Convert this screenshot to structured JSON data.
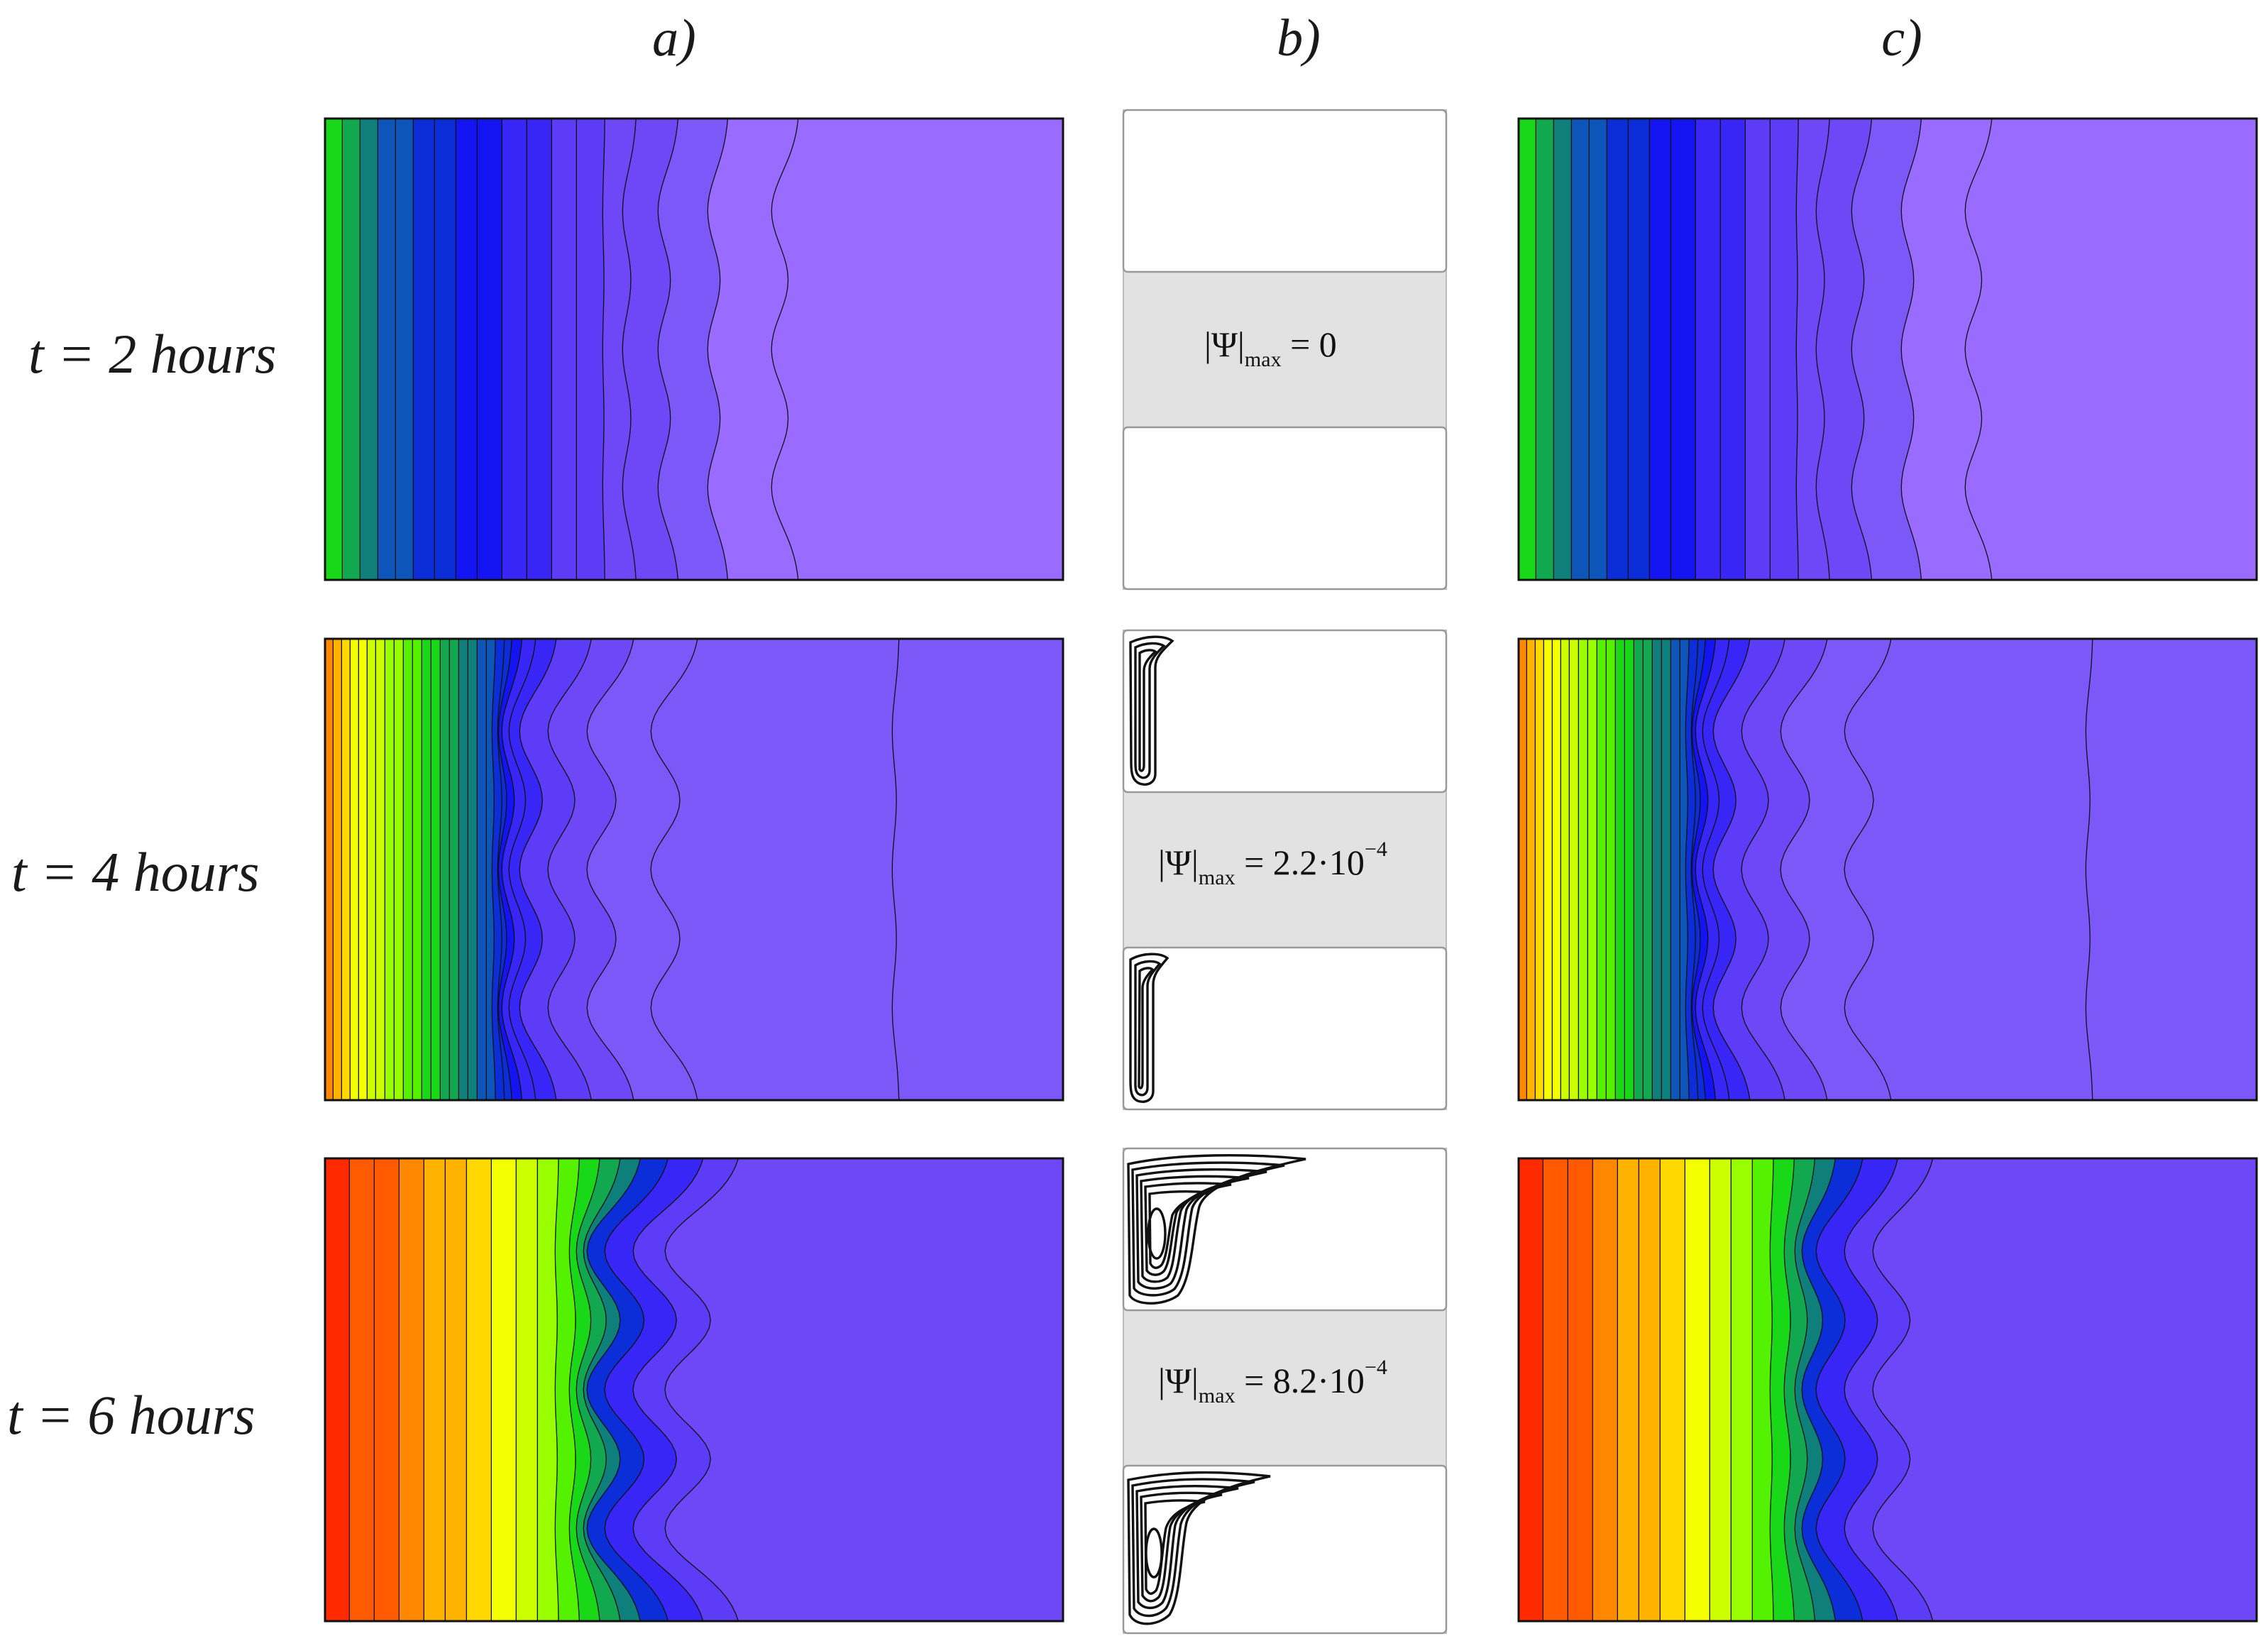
{
  "columns": [
    {
      "id": "a",
      "label": "a)"
    },
    {
      "id": "b",
      "label": "b)"
    },
    {
      "id": "c",
      "label": "c)"
    }
  ],
  "rows": [
    {
      "label": "t = 2 hours",
      "psi_prefix": "|Ψ|",
      "psi_sub": "max",
      "psi_value": " = 0",
      "psi_exp": ""
    },
    {
      "label": "t = 4 hours",
      "psi_prefix": "|Ψ|",
      "psi_sub": "max",
      "psi_value": " = 2.2·10",
      "psi_exp": "−4"
    },
    {
      "label": "t = 6 hours",
      "psi_prefix": "|Ψ|",
      "psi_sub": "max",
      "psi_value": " = 8.2·10",
      "psi_exp": "−4"
    }
  ],
  "colors": {
    "palette": [
      "#ff2a00",
      "#ff5a00",
      "#ff8800",
      "#ffb300",
      "#ffd800",
      "#f4ff00",
      "#ccff00",
      "#99ff00",
      "#55f200",
      "#18d818",
      "#12a850",
      "#0f7f7c",
      "#0d55b8",
      "#0c2ed8",
      "#1414f2",
      "#3826f7",
      "#5c3cf7",
      "#6e48f7",
      "#7d58f9",
      "#9a6bff"
    ],
    "panel_a_t2": [
      9,
      10,
      11,
      12,
      12,
      13,
      13,
      14,
      14,
      15,
      15,
      16,
      16,
      17,
      17,
      18,
      19
    ],
    "panel_a_t4": [
      2,
      3,
      4,
      5,
      5,
      6,
      6,
      7,
      7,
      8,
      8,
      9,
      9,
      10,
      10,
      11,
      11,
      12,
      12,
      13,
      13,
      14,
      15,
      15,
      16,
      17,
      18
    ],
    "panel_a_t6": [
      0,
      1,
      1,
      2,
      3,
      3,
      4,
      5,
      6,
      7,
      8,
      9,
      10,
      11,
      13,
      15,
      16,
      17
    ],
    "panel_c_t2": [
      9,
      10,
      11,
      12,
      12,
      13,
      13,
      14,
      14,
      15,
      15,
      16,
      16,
      17,
      17,
      18,
      19
    ],
    "panel_c_t4": [
      2,
      3,
      4,
      5,
      5,
      6,
      6,
      7,
      7,
      8,
      8,
      9,
      9,
      10,
      10,
      11,
      11,
      12,
      12,
      13,
      13,
      14,
      15,
      15,
      16,
      17,
      18
    ],
    "panel_c_t6": [
      0,
      1,
      1,
      2,
      3,
      3,
      4,
      5,
      6,
      7,
      8,
      9,
      10,
      11,
      13,
      15,
      16,
      17
    ],
    "psi_band": "#dcdcdc",
    "frame": "#111111"
  }
}
